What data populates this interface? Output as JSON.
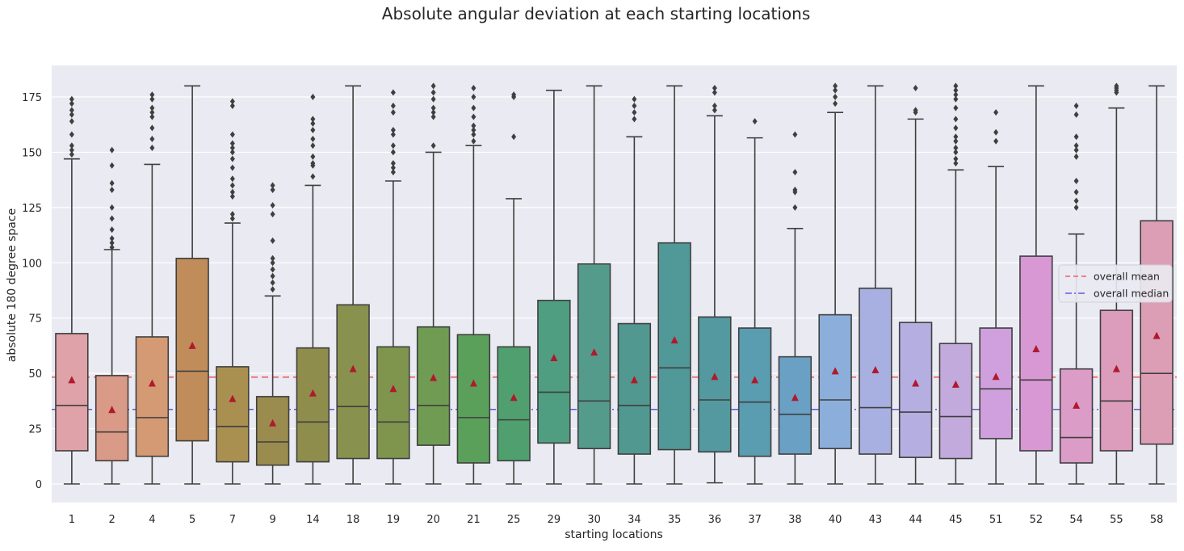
{
  "chart_data": {
    "type": "box",
    "title": "Absolute angular deviation at each starting locations",
    "xlabel": "starting locations",
    "ylabel": "absolute 180 degree space",
    "ylim": [
      -9,
      188
    ],
    "yticks": [
      0,
      25,
      50,
      75,
      100,
      125,
      150,
      175
    ],
    "grid": true,
    "legend_position": "right",
    "reference_lines": [
      {
        "name": "overall mean",
        "value": 48.3,
        "color": "#f06060",
        "style": "dashed"
      },
      {
        "name": "overall median",
        "value": 33.7,
        "color": "#5a5ae0",
        "style": "dashdot"
      }
    ],
    "boxes": [
      {
        "category": "1",
        "color": "#dea2a8",
        "whisker_low": 0,
        "q1": 15,
        "median": 35.5,
        "q3": 68,
        "whisker_high": 147,
        "mean": 47,
        "outliers": [
          149,
          151,
          153,
          158,
          164,
          167,
          169,
          172,
          174
        ]
      },
      {
        "category": "2",
        "color": "#d99a88",
        "whisker_low": 0,
        "q1": 10.5,
        "median": 23.5,
        "q3": 49,
        "whisker_high": 106,
        "mean": 33.5,
        "outliers": [
          107,
          109,
          111,
          115,
          120,
          125,
          133,
          136,
          144,
          151
        ]
      },
      {
        "category": "4",
        "color": "#d49a74",
        "whisker_low": 0,
        "q1": 12.5,
        "median": 30,
        "q3": 66.5,
        "whisker_high": 144.5,
        "mean": 45.5,
        "outliers": [
          152,
          156,
          161,
          166,
          168,
          170,
          174,
          176
        ]
      },
      {
        "category": "5",
        "color": "#c08d5a",
        "whisker_low": 0,
        "q1": 19.5,
        "median": 51,
        "q3": 102,
        "whisker_high": 180,
        "mean": 62.5,
        "outliers": []
      },
      {
        "category": "7",
        "color": "#aa9050",
        "whisker_low": 0,
        "q1": 10,
        "median": 26,
        "q3": 53,
        "whisker_high": 118,
        "mean": 38.5,
        "outliers": [
          120,
          122,
          130,
          132,
          135,
          138,
          143,
          147,
          150,
          152,
          154,
          158,
          171,
          173
        ]
      },
      {
        "category": "9",
        "color": "#9a8b4e",
        "whisker_low": 0,
        "q1": 8.5,
        "median": 19,
        "q3": 39.5,
        "whisker_high": 85,
        "mean": 27.5,
        "outliers": [
          88,
          91,
          94,
          97,
          100,
          102,
          110,
          122,
          126,
          133,
          135
        ]
      },
      {
        "category": "14",
        "color": "#8f8d4c",
        "whisker_low": 0,
        "q1": 10,
        "median": 28,
        "q3": 61.5,
        "whisker_high": 135,
        "mean": 41,
        "outliers": [
          139,
          144,
          145,
          148,
          153,
          156,
          160,
          163,
          165,
          175
        ]
      },
      {
        "category": "18",
        "color": "#88924e",
        "whisker_low": 0,
        "q1": 11.5,
        "median": 35,
        "q3": 81,
        "whisker_high": 180,
        "mean": 52,
        "outliers": []
      },
      {
        "category": "19",
        "color": "#7f954e",
        "whisker_low": 0,
        "q1": 11.5,
        "median": 28,
        "q3": 62,
        "whisker_high": 137,
        "mean": 43,
        "outliers": [
          141,
          143,
          145,
          150,
          153,
          158,
          160,
          168,
          171,
          177
        ]
      },
      {
        "category": "20",
        "color": "#6f9c52",
        "whisker_low": 0,
        "q1": 17.5,
        "median": 35.5,
        "q3": 71,
        "whisker_high": 150,
        "mean": 48,
        "outliers": [
          153,
          166,
          168,
          170,
          174,
          177,
          180
        ]
      },
      {
        "category": "21",
        "color": "#5ba05a",
        "whisker_low": 0,
        "q1": 9.5,
        "median": 30,
        "q3": 67.5,
        "whisker_high": 153,
        "mean": 45.5,
        "outliers": [
          155,
          158,
          160,
          162,
          166,
          170,
          175,
          179
        ]
      },
      {
        "category": "25",
        "color": "#4fa06e",
        "whisker_low": 0,
        "q1": 10.5,
        "median": 29,
        "q3": 62,
        "whisker_high": 129,
        "mean": 39,
        "outliers": [
          157,
          175,
          176
        ]
      },
      {
        "category": "29",
        "color": "#4f9e82",
        "whisker_low": 0,
        "q1": 18.5,
        "median": 41.5,
        "q3": 83,
        "whisker_high": 178,
        "mean": 57,
        "outliers": []
      },
      {
        "category": "30",
        "color": "#559b8c",
        "whisker_low": 0,
        "q1": 16,
        "median": 37.5,
        "q3": 99.5,
        "whisker_high": 180,
        "mean": 59.5,
        "outliers": []
      },
      {
        "category": "34",
        "color": "#519890",
        "whisker_low": 0,
        "q1": 13.5,
        "median": 35.5,
        "q3": 72.5,
        "whisker_high": 157,
        "mean": 47,
        "outliers": [
          165,
          168,
          171,
          174
        ]
      },
      {
        "category": "35",
        "color": "#519899",
        "whisker_low": 0,
        "q1": 15.5,
        "median": 52.5,
        "q3": 109,
        "whisker_high": 180,
        "mean": 65,
        "outliers": []
      },
      {
        "category": "36",
        "color": "#53999f",
        "whisker_low": 0.5,
        "q1": 14.5,
        "median": 38,
        "q3": 75.5,
        "whisker_high": 166.5,
        "mean": 48.5,
        "outliers": [
          169,
          171,
          177,
          179
        ]
      },
      {
        "category": "37",
        "color": "#5a9db0",
        "whisker_low": 0,
        "q1": 12.5,
        "median": 37,
        "q3": 70.5,
        "whisker_high": 156.5,
        "mean": 47,
        "outliers": [
          164
        ]
      },
      {
        "category": "38",
        "color": "#6aa0c4",
        "whisker_low": 0,
        "q1": 13.5,
        "median": 31.5,
        "q3": 57.5,
        "whisker_high": 115.5,
        "mean": 39,
        "outliers": [
          125,
          132,
          133,
          141,
          158
        ]
      },
      {
        "category": "40",
        "color": "#8caedb",
        "whisker_low": 0,
        "q1": 16,
        "median": 38,
        "q3": 76.5,
        "whisker_high": 168,
        "mean": 51,
        "outliers": [
          172,
          175,
          178,
          180
        ]
      },
      {
        "category": "43",
        "color": "#a7b0e0",
        "whisker_low": 0,
        "q1": 13.5,
        "median": 34.5,
        "q3": 88.5,
        "whisker_high": 180,
        "mean": 51.5,
        "outliers": []
      },
      {
        "category": "44",
        "color": "#b5aee0",
        "whisker_low": 0,
        "q1": 12,
        "median": 32.5,
        "q3": 73,
        "whisker_high": 165,
        "mean": 45.5,
        "outliers": [
          168,
          169,
          179
        ]
      },
      {
        "category": "45",
        "color": "#c2aadd",
        "whisker_low": 0,
        "q1": 11.5,
        "median": 30.5,
        "q3": 63.5,
        "whisker_high": 142,
        "mean": 45,
        "outliers": [
          145,
          147,
          150,
          152,
          155,
          157,
          161,
          165,
          170,
          174,
          176,
          178,
          180
        ]
      },
      {
        "category": "51",
        "color": "#cfa0dd",
        "whisker_low": 0,
        "q1": 20.5,
        "median": 43,
        "q3": 70.5,
        "whisker_high": 143.5,
        "mean": 48.5,
        "outliers": [
          155,
          159,
          168
        ]
      },
      {
        "category": "52",
        "color": "#d898d4",
        "whisker_low": 0,
        "q1": 15,
        "median": 47,
        "q3": 103,
        "whisker_high": 180,
        "mean": 61,
        "outliers": []
      },
      {
        "category": "54",
        "color": "#dc9cc8",
        "whisker_low": 0,
        "q1": 9.5,
        "median": 21,
        "q3": 52,
        "whisker_high": 113,
        "mean": 35.5,
        "outliers": [
          125,
          128,
          132,
          137,
          148,
          151,
          153,
          157,
          167,
          171
        ]
      },
      {
        "category": "55",
        "color": "#dc9cbc",
        "whisker_low": 0,
        "q1": 15,
        "median": 37.5,
        "q3": 78.5,
        "whisker_high": 170,
        "mean": 52,
        "outliers": [
          177,
          178,
          179,
          180
        ]
      },
      {
        "category": "58",
        "color": "#dc9eb4",
        "whisker_low": 0,
        "q1": 18,
        "median": 50,
        "q3": 119,
        "whisker_high": 180,
        "mean": 67,
        "outliers": []
      }
    ]
  }
}
